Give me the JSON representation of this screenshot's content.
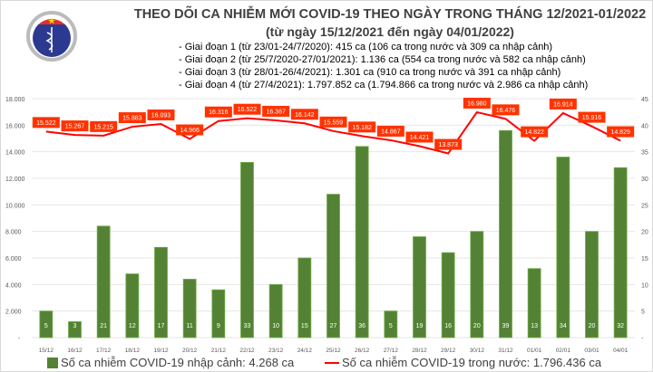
{
  "logo": {
    "text_top": "BỘ Y TẾ",
    "text_bottom": "MINISTRY OF HEALTH"
  },
  "chart_data": {
    "type": "bar+line",
    "title": "THEO DÕI CA NHIỄM MỚI COVID-19 THEO NGÀY TRONG THÁNG 12/2021-01/2022",
    "subtitle": "(từ ngày 15/12/2021 đến ngày 04/01/2022)",
    "notes": [
      "- Giai đoạn 1 (từ 23/01-24/7/2020): 415 ca (106 ca trong nước và 309 ca nhập cảnh)",
      "- Giai đoạn 2 (từ 25/7/2020-27/01/2021): 1.136 ca (554 ca trong nước và 582 ca nhập cảnh)",
      "- Giai đoạn 3 (từ 28/01-26/4/2021): 1.301 ca (910 ca trong nước và 391 ca nhập cảnh)",
      "- Giai đoạn 4 (từ 27/4/2021): 1.797.852 ca (1.794.866 ca trong nước và 2.986 ca nhập cảnh)"
    ],
    "categories": [
      "15/12",
      "16/12",
      "17/12",
      "18/12",
      "19/12",
      "20/12",
      "21/12",
      "22/12",
      "23/12",
      "24/12",
      "25/12",
      "26/12",
      "27/12",
      "28/12",
      "29/12",
      "30/12",
      "31/12",
      "01/01",
      "02/01",
      "03/01",
      "04/01"
    ],
    "series": [
      {
        "name": "Số ca nhiễm COVID-19 nhập cảnh: 4.268 ca",
        "type": "bar",
        "axis": "right",
        "color": "#548235",
        "values": [
          5,
          3,
          21,
          12,
          17,
          11,
          9,
          33,
          10,
          15,
          27,
          36,
          5,
          19,
          16,
          20,
          39,
          13,
          34,
          20,
          32
        ]
      },
      {
        "name": "Số ca nhiễm COVID-19 trong nước: 1.796.436 ca",
        "type": "line",
        "axis": "left",
        "color": "#ff0000",
        "label_color": "#ff3300",
        "values": [
          15522,
          15267,
          15215,
          15883,
          16093,
          14966,
          16316,
          16522,
          16367,
          16142,
          15559,
          15182,
          14867,
          14421,
          13873,
          16980,
          16476,
          14822,
          16914,
          15916,
          14829
        ]
      }
    ],
    "left_axis": {
      "ylim": [
        0,
        18000
      ],
      "ticks": [
        "-",
        "2.000",
        "4.000",
        "6.000",
        "8.000",
        "10.000",
        "12.000",
        "14.000",
        "16.000",
        "18.000"
      ]
    },
    "right_axis": {
      "ylim": [
        0,
        45
      ],
      "ticks": [
        "-",
        "5",
        "10",
        "15",
        "20",
        "25",
        "30",
        "35",
        "40",
        "45"
      ]
    },
    "grid": true,
    "legend_position": "bottom"
  }
}
